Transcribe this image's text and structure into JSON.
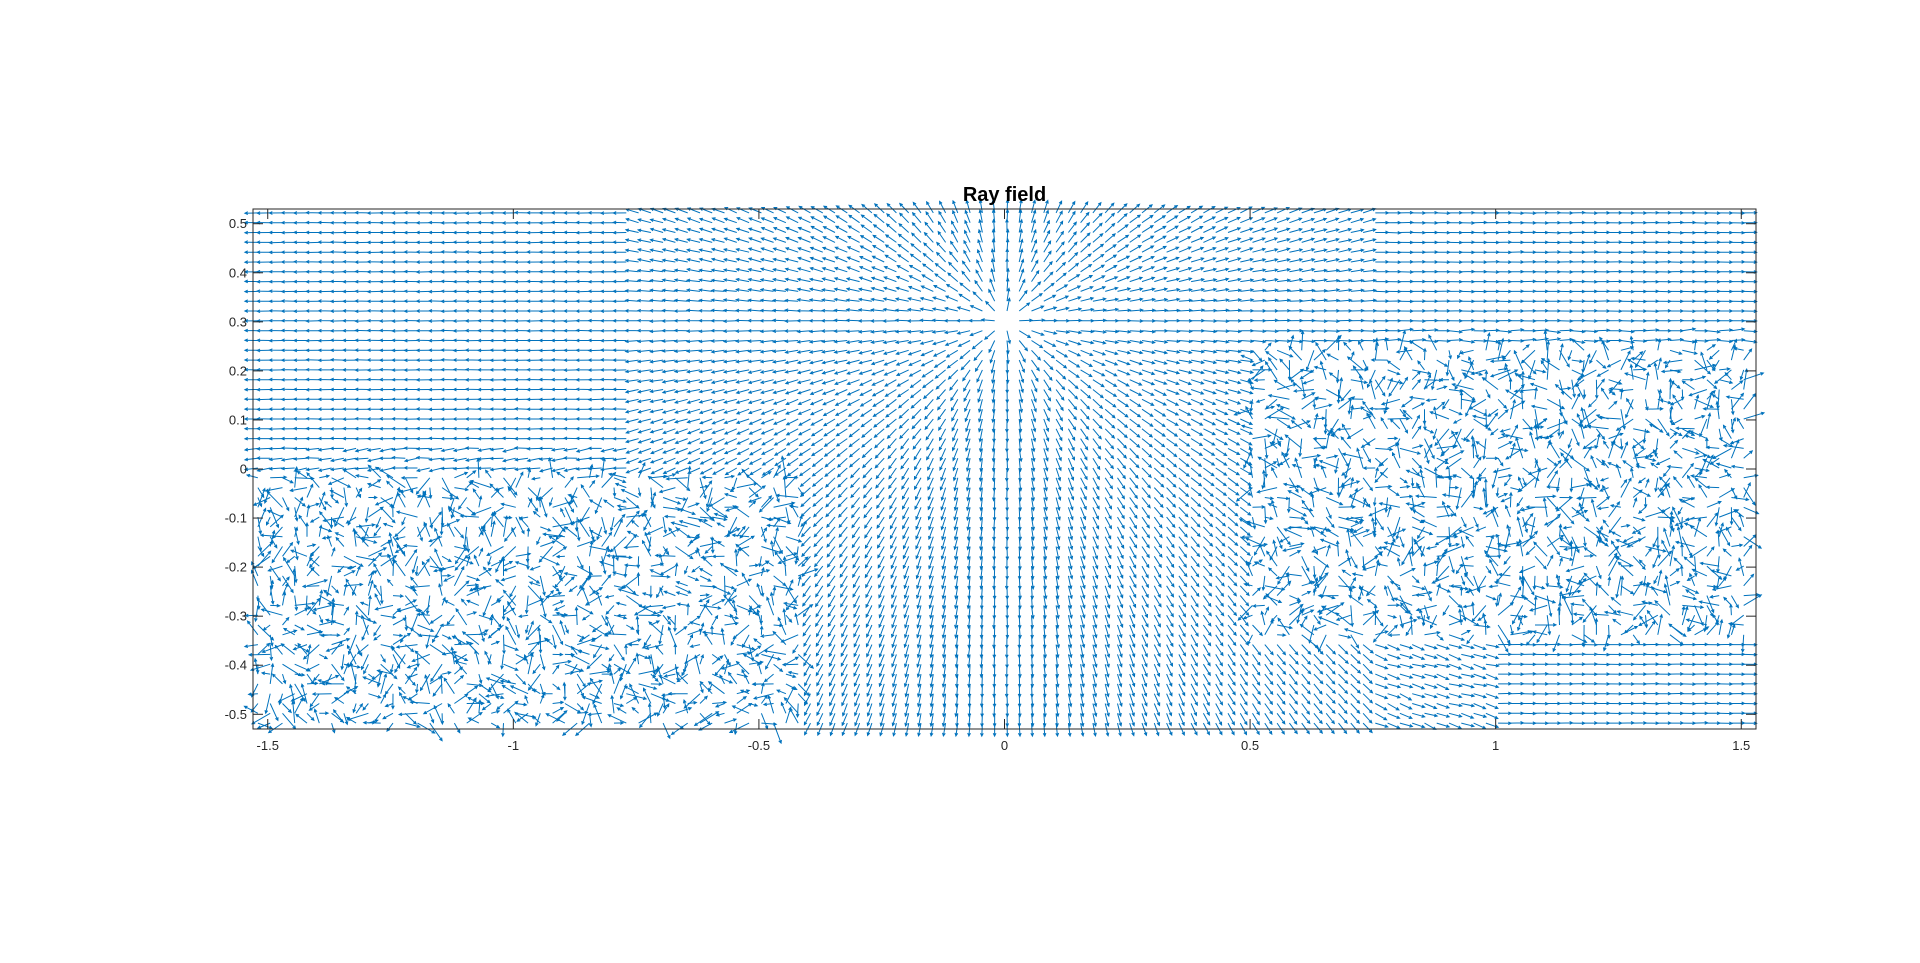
{
  "chart_data": {
    "type": "quiver",
    "title": "Ray field",
    "xlabel": "",
    "ylabel": "",
    "xlim": [
      -1.53,
      1.53
    ],
    "ylim": [
      -0.53,
      0.53
    ],
    "x_ticks": [
      -1.5,
      -1,
      -0.5,
      0,
      0.5,
      1,
      1.5
    ],
    "x_tick_labels": [
      "-1.5",
      "-1",
      "-0.5",
      "0",
      "0.5",
      "1",
      "1.5"
    ],
    "y_ticks": [
      -0.5,
      -0.4,
      -0.3,
      -0.2,
      -0.1,
      0,
      0.1,
      0.2,
      0.3,
      0.4,
      0.5
    ],
    "y_tick_labels": [
      "-0.5",
      "-0.4",
      "-0.3",
      "-0.2",
      "-0.1",
      "0",
      "0.1",
      "0.2",
      "0.3",
      "0.4",
      "0.5"
    ],
    "grid": false,
    "box": true,
    "source_point": [
      0,
      0.3
    ],
    "arrow_color": "#0072BD",
    "grid_spacing": [
      0.025,
      0.02
    ],
    "regions": [
      {
        "field": "radial-from-source",
        "x_range": [
          -0.75,
          0.75
        ],
        "y_range": [
          -0.53,
          0.53
        ]
      },
      {
        "field": "horizontal-left",
        "x_range": [
          -1.53,
          -0.75
        ],
        "y_range": [
          0.05,
          0.53
        ]
      },
      {
        "field": "horizontal-right",
        "x_range": [
          0.75,
          1.53
        ],
        "y_range": [
          0.3,
          0.53
        ]
      },
      {
        "field": "scattered",
        "x_range": [
          -1.53,
          -0.4
        ],
        "y_range": [
          -0.53,
          0.0
        ]
      },
      {
        "field": "scattered",
        "x_range": [
          0.5,
          1.53
        ],
        "y_range": [
          -0.35,
          0.25
        ]
      },
      {
        "field": "horizontal-right",
        "x_range": [
          1.0,
          1.53
        ],
        "y_range": [
          -0.53,
          -0.3
        ]
      }
    ]
  }
}
